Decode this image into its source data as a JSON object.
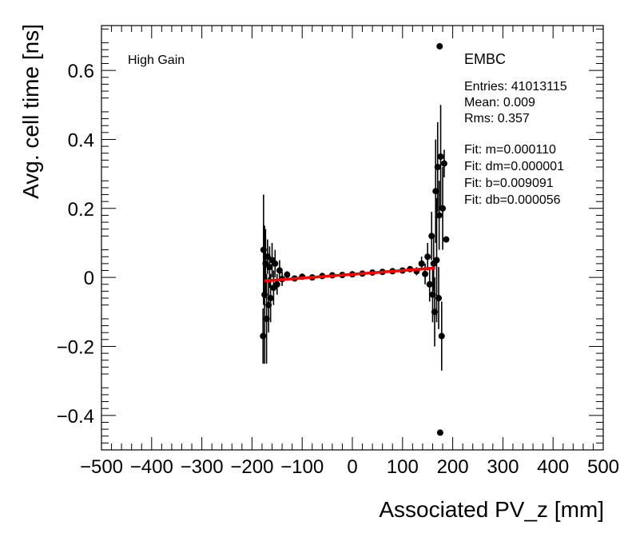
{
  "chart_data": {
    "type": "scatter",
    "xlabel": "Associated PV_z [mm]",
    "ylabel": "Avg. cell time [ns]",
    "xlim": [
      -500,
      500
    ],
    "ylim": [
      -0.5,
      0.73
    ],
    "xticks": [
      "−500",
      "−400",
      "−300",
      "−200",
      "−100",
      "0",
      "100",
      "200",
      "300",
      "400",
      "500"
    ],
    "xtick_values": [
      -500,
      -400,
      -300,
      -200,
      -100,
      0,
      100,
      200,
      300,
      400,
      500
    ],
    "yticks": [
      "−0.4",
      "−0.2",
      "0",
      "0.2",
      "0.4",
      "0.6"
    ],
    "ytick_values": [
      -0.4,
      -0.2,
      0,
      0.2,
      0.4,
      0.6
    ],
    "gain_label": "High Gain",
    "region_label": "EMBC",
    "stats": [
      "Entries: 41013115",
      "Mean: 0.009",
      "Rms: 0.357"
    ],
    "fit_text": [
      "Fit: m=0.000110",
      "Fit: dm=0.000001",
      "Fit: b=0.009091",
      "Fit: db=0.000056"
    ],
    "fit": {
      "m": 0.00011,
      "b": 0.009091,
      "x_range": [
        -175,
        165
      ],
      "color": "#ff0000"
    },
    "marker_color": "#000000",
    "points": [
      {
        "x": -178,
        "y": -0.17,
        "err": 0.08
      },
      {
        "x": -177,
        "y": 0.08,
        "err": 0.16
      },
      {
        "x": -175,
        "y": -0.05,
        "err": 0.2
      },
      {
        "x": -173,
        "y": 0.04,
        "err": 0.1
      },
      {
        "x": -171,
        "y": -0.12,
        "err": 0.13
      },
      {
        "x": -169,
        "y": 0.06,
        "err": 0.05
      },
      {
        "x": -167,
        "y": -0.08,
        "err": 0.08
      },
      {
        "x": -165,
        "y": 0.03,
        "err": 0.06
      },
      {
        "x": -163,
        "y": -0.06,
        "err": 0.07
      },
      {
        "x": -160,
        "y": 0.05,
        "err": 0.05
      },
      {
        "x": -157,
        "y": -0.03,
        "err": 0.05
      },
      {
        "x": -154,
        "y": 0.04,
        "err": 0.04
      },
      {
        "x": -150,
        "y": -0.02,
        "err": 0.03
      },
      {
        "x": -145,
        "y": 0.02,
        "err": 0.03
      },
      {
        "x": -140,
        "y": -0.005,
        "err": 0.02
      },
      {
        "x": -130,
        "y": 0.008,
        "err": 0.01
      },
      {
        "x": -115,
        "y": -0.003,
        "err": 0.008
      },
      {
        "x": -100,
        "y": 0.002,
        "err": 0.005
      },
      {
        "x": -80,
        "y": 0.0,
        "err": 0.004
      },
      {
        "x": -60,
        "y": 0.004,
        "err": 0.003
      },
      {
        "x": -40,
        "y": 0.006,
        "err": 0.003
      },
      {
        "x": -20,
        "y": 0.007,
        "err": 0.003
      },
      {
        "x": 0,
        "y": 0.009,
        "err": 0.003
      },
      {
        "x": 20,
        "y": 0.011,
        "err": 0.003
      },
      {
        "x": 40,
        "y": 0.014,
        "err": 0.003
      },
      {
        "x": 60,
        "y": 0.016,
        "err": 0.004
      },
      {
        "x": 80,
        "y": 0.018,
        "err": 0.005
      },
      {
        "x": 100,
        "y": 0.02,
        "err": 0.006
      },
      {
        "x": 115,
        "y": 0.024,
        "err": 0.008
      },
      {
        "x": 128,
        "y": 0.018,
        "err": 0.012
      },
      {
        "x": 138,
        "y": 0.04,
        "err": 0.02
      },
      {
        "x": 145,
        "y": 0.01,
        "err": 0.03
      },
      {
        "x": 150,
        "y": 0.06,
        "err": 0.04
      },
      {
        "x": 154,
        "y": -0.02,
        "err": 0.05
      },
      {
        "x": 158,
        "y": 0.12,
        "err": 0.07
      },
      {
        "x": 160,
        "y": -0.05,
        "err": 0.08
      },
      {
        "x": 162,
        "y": 0.04,
        "err": 0.08
      },
      {
        "x": 164,
        "y": -0.1,
        "err": 0.1
      },
      {
        "x": 166,
        "y": 0.25,
        "err": 0.15
      },
      {
        "x": 168,
        "y": 0.05,
        "err": 0.18
      },
      {
        "x": 170,
        "y": 0.32,
        "err": 0.13
      },
      {
        "x": 172,
        "y": -0.06,
        "err": 0.09
      },
      {
        "x": 173,
        "y": 0.18,
        "err": 0.1
      },
      {
        "x": 174,
        "y": 0.67,
        "err": 0.0
      },
      {
        "x": 175,
        "y": -0.45,
        "err": 0.0
      },
      {
        "x": 176,
        "y": 0.35,
        "err": 0.15
      },
      {
        "x": 178,
        "y": -0.17,
        "err": 0.1
      },
      {
        "x": 180,
        "y": 0.2,
        "err": 0.12
      },
      {
        "x": 183,
        "y": 0.33,
        "err": 0.04
      },
      {
        "x": 187,
        "y": 0.11,
        "err": 0.0
      }
    ]
  }
}
